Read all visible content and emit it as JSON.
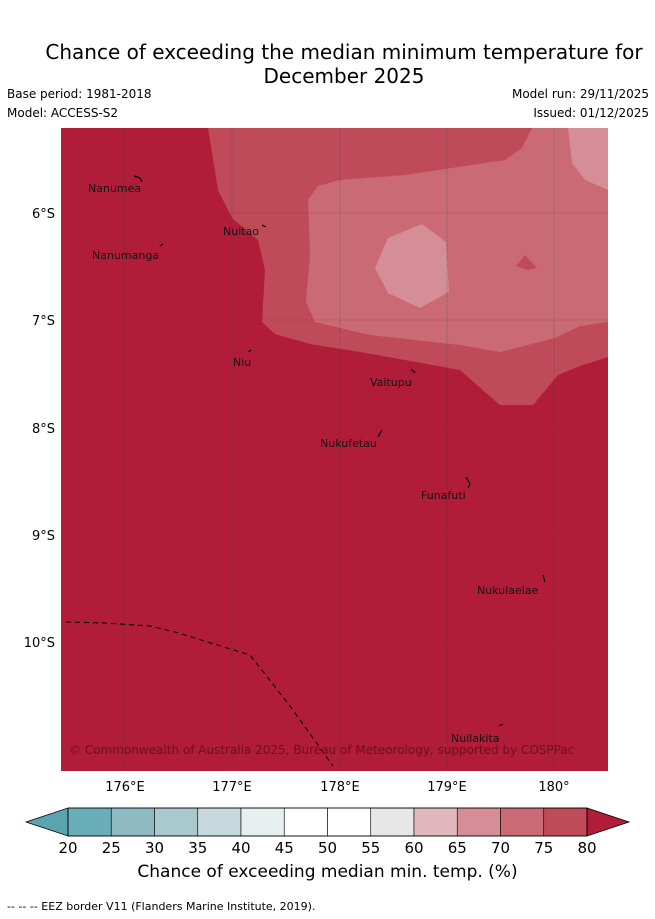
{
  "title_line1": "Chance of exceeding the median minimum temperature for",
  "title_line2": "December 2025",
  "base_period": "Base period: 1981-2018",
  "model": "Model: ACCESS-S2",
  "model_run": "Model run: 29/11/2025",
  "issued": "Issued: 01/12/2025",
  "copyright": "© Commonwealth of Australia 2025, Bureau of Meteorology, supported by COSPPac",
  "lat_labels": [
    "6°S",
    "7°S",
    "8°S",
    "9°S",
    "10°S"
  ],
  "lon_labels": [
    "176°E",
    "177°E",
    "178°E",
    "179°E",
    "180°"
  ],
  "places": [
    "Nanumea",
    "Nuitao",
    "Nanumanga",
    "Niu",
    "Vaitupu",
    "Nukufetau",
    "Funafuti",
    "Nukulaelae",
    "Nuilakita"
  ],
  "colorbar": {
    "ticks": [
      "20",
      "25",
      "30",
      "35",
      "40",
      "45",
      "50",
      "55",
      "60",
      "65",
      "70",
      "75",
      "80"
    ],
    "colors": [
      "#6aaeb9",
      "#8fb9c3",
      "#aac9cd",
      "#c7d9dd",
      "#e8eff1",
      "#ffffff",
      "#ffffff",
      "#e7e7e8",
      "#e1b8be",
      "#d68e96",
      "#c96a75",
      "#c04b58"
    ],
    "under_color": "#5aa4b0",
    "over_color": "#b11d38",
    "label": "Chance of exceeding median min. temp. (%)"
  },
  "footnote": "--  --  -- EEZ border V11 (Flanders Marine Institute, 2019)."
}
